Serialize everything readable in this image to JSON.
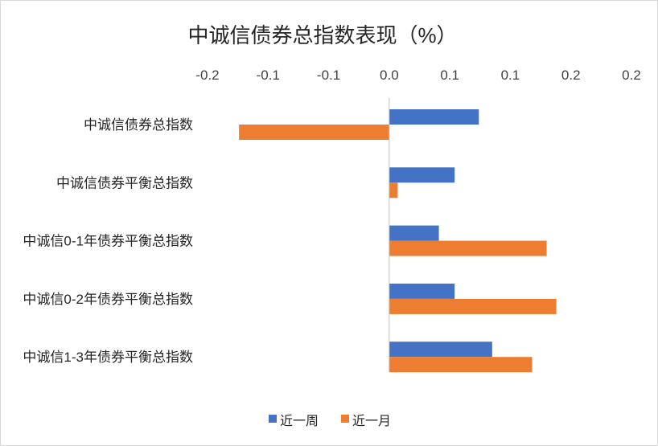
{
  "chart_data": {
    "type": "bar",
    "orientation": "horizontal",
    "title": "中诚信债券总指数表现（%）",
    "categories": [
      "中诚信债券总指数",
      "中诚信债券平衡总指数",
      "中诚信0-1年债券平衡总指数",
      "中诚信0-2年债券平衡总指数",
      "中诚信1-3年债券平衡总指数"
    ],
    "series": [
      {
        "name": "近一周",
        "color": "#4472C4",
        "values": [
          0.074,
          0.054,
          0.041,
          0.054,
          0.085
        ]
      },
      {
        "name": "近一月",
        "color": "#ED7D31",
        "values": [
          -0.124,
          0.007,
          0.13,
          0.138,
          0.118
        ]
      }
    ],
    "xlim": [
      -0.15,
      0.2
    ],
    "x_ticks": [
      -0.15,
      -0.1,
      -0.05,
      0,
      0.05,
      0.1,
      0.15,
      0.2
    ],
    "x_tick_labels": [
      "-0.2",
      "-0.1",
      "-0.1",
      "0.0",
      "0.1",
      "0.1",
      "0.2",
      "0.2"
    ],
    "negative_tick_color": "#FF0000",
    "tick_color": "#404040",
    "axis_position": "top",
    "legend": "bottom",
    "grid": false
  }
}
